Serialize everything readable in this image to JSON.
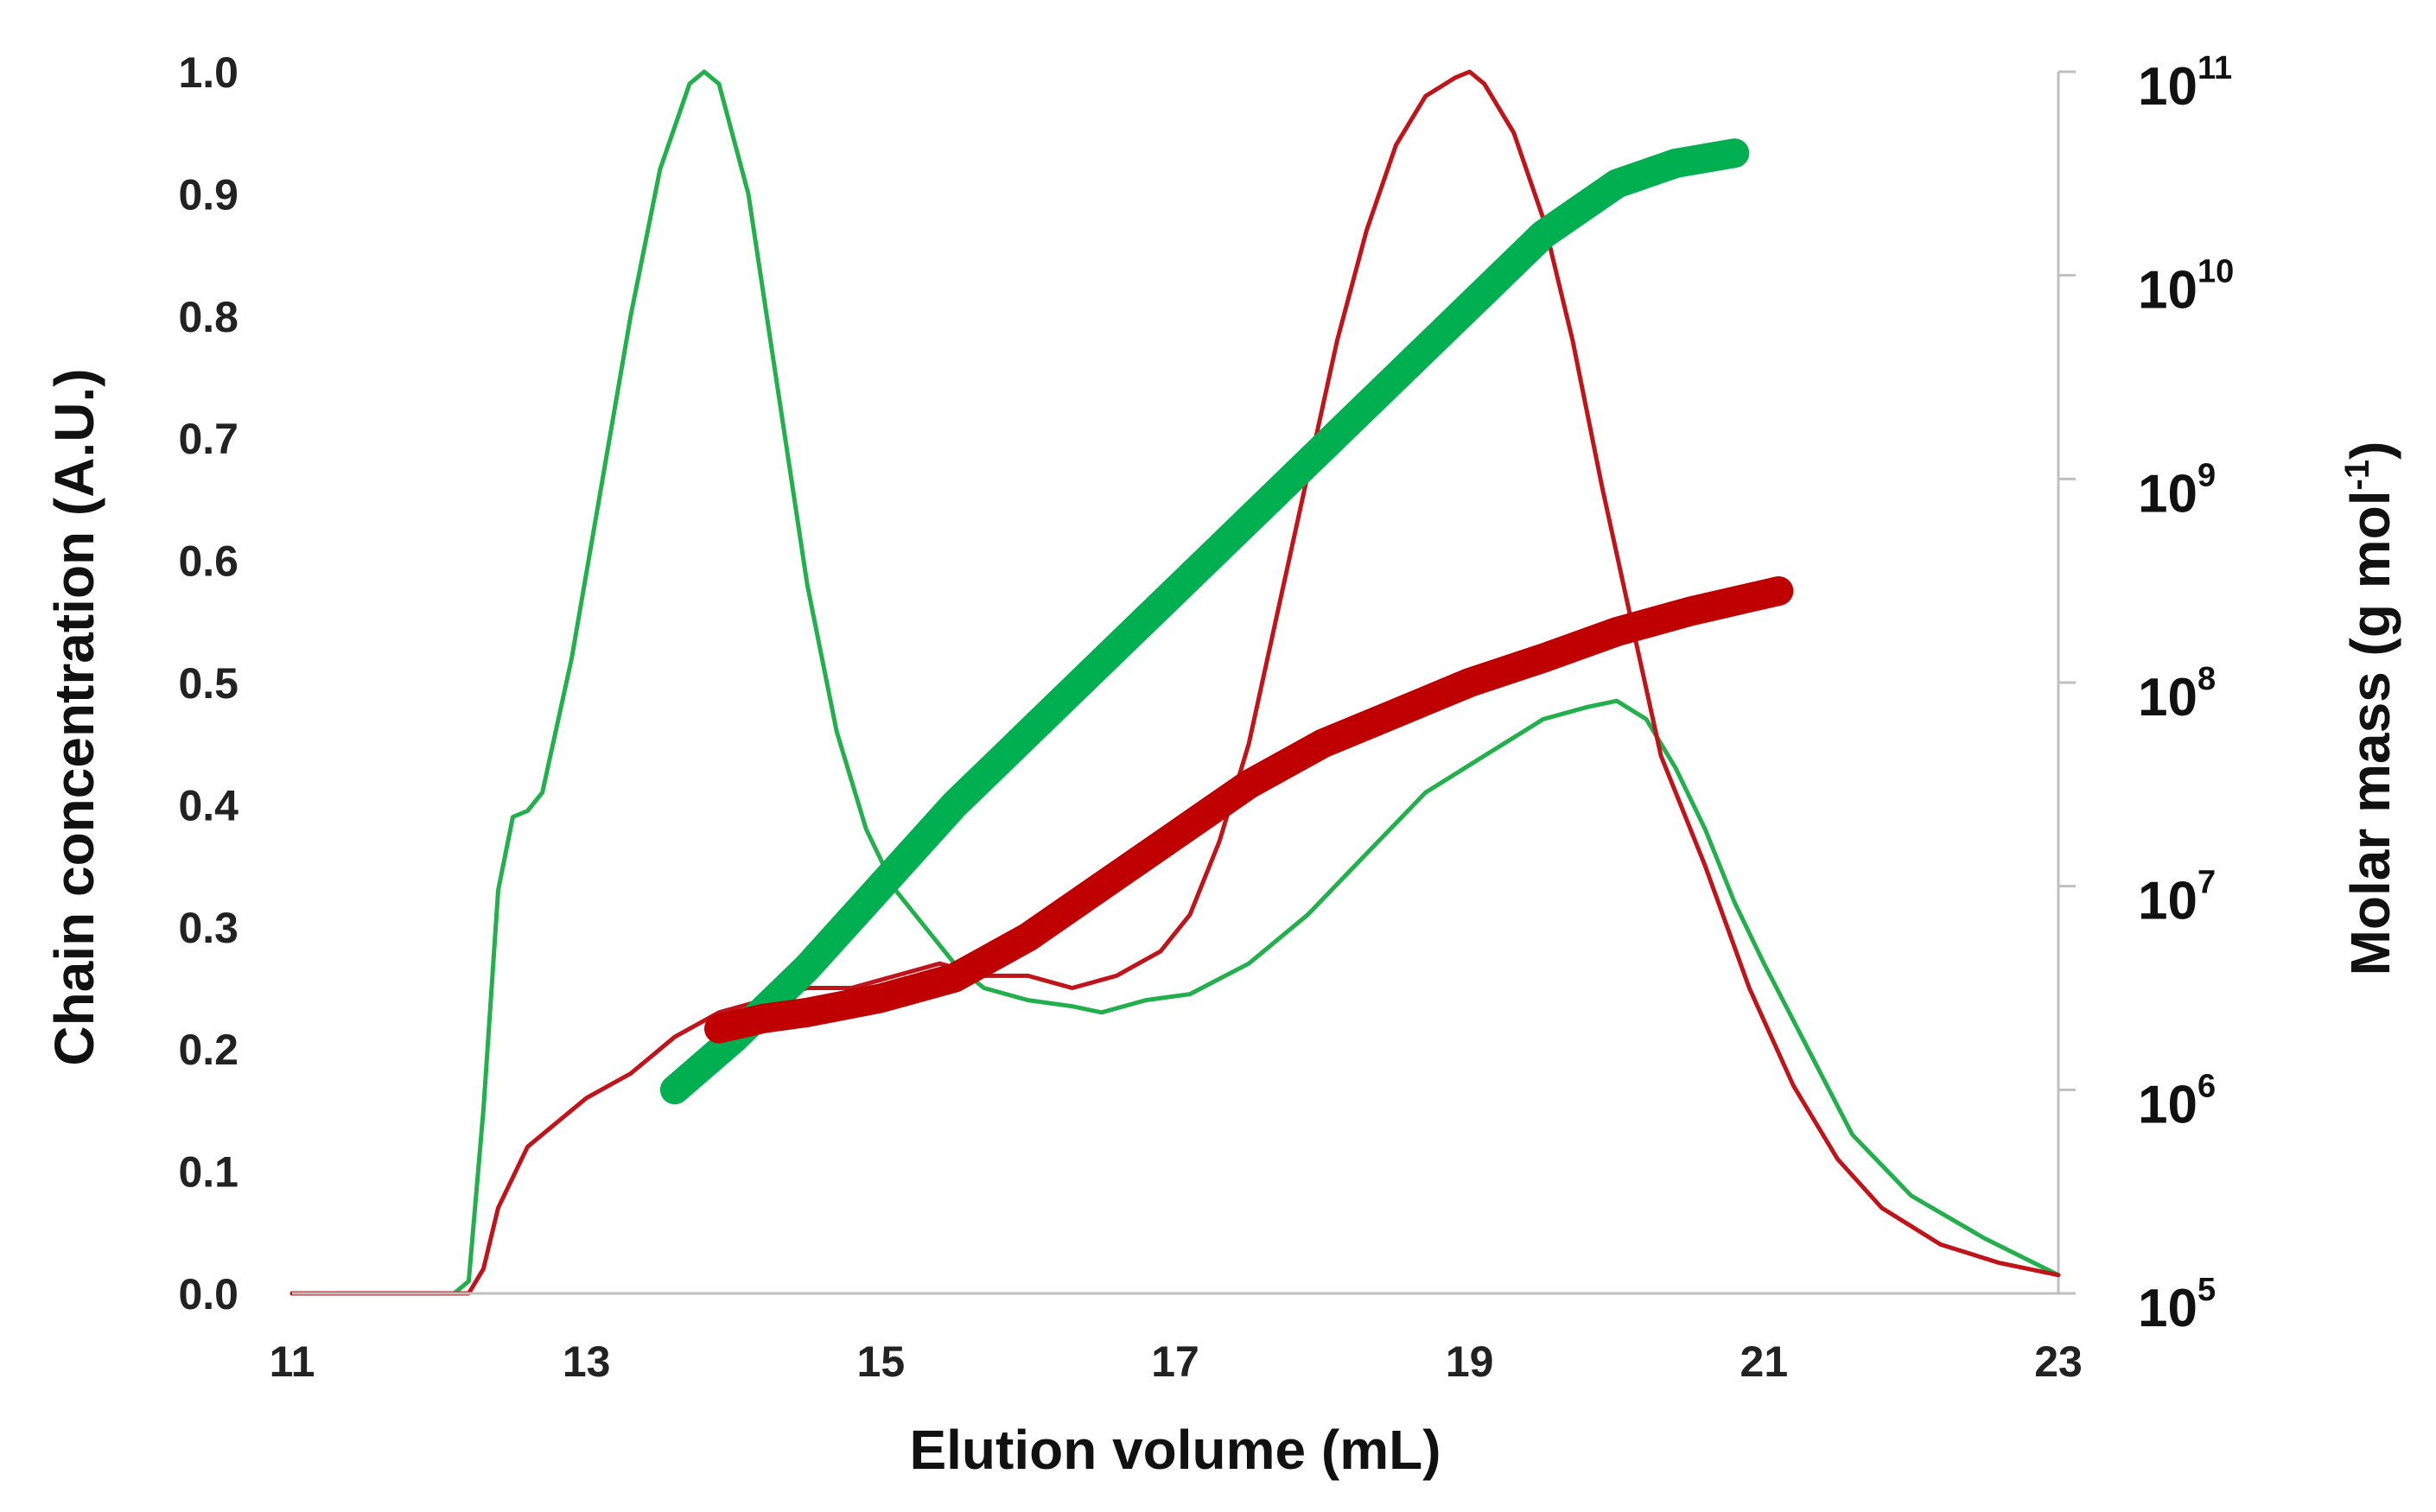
{
  "chart_data": {
    "type": "line",
    "title": "",
    "xlabel": "Elution volume (mL)",
    "ylabel": "Chain concentration (A.U.)",
    "y2label": {
      "text": "Molar mass (g mol",
      "superscript": "-1",
      "close": ")"
    },
    "xlim": [
      11,
      23
    ],
    "ylim": [
      0,
      1.0
    ],
    "y2lim_log10": [
      5,
      11
    ],
    "x_ticks": [
      "11",
      "13",
      "15",
      "17",
      "19",
      "21",
      "23"
    ],
    "x_tick_values": [
      11,
      13,
      15,
      17,
      19,
      21,
      23
    ],
    "y_ticks": [
      "0.0",
      "0.1",
      "0.2",
      "0.3",
      "0.4",
      "0.5",
      "0.6",
      "0.7",
      "0.8",
      "0.9",
      "1.0"
    ],
    "y_tick_values": [
      0,
      0.1,
      0.2,
      0.3,
      0.4,
      0.5,
      0.6,
      0.7,
      0.8,
      0.9,
      1.0
    ],
    "y2_ticks": [
      {
        "base": "10",
        "exp": "5"
      },
      {
        "base": "10",
        "exp": "6"
      },
      {
        "base": "10",
        "exp": "7"
      },
      {
        "base": "10",
        "exp": "8"
      },
      {
        "base": "10",
        "exp": "9"
      },
      {
        "base": "10",
        "exp": "10"
      },
      {
        "base": "10",
        "exp": "11"
      }
    ],
    "grid": false,
    "legend": "none",
    "series": [
      {
        "name": "green concentration",
        "axis": "left",
        "style": "thin-line",
        "color": "#21b04b",
        "x": [
          11.0,
          12.1,
          12.2,
          12.3,
          12.4,
          12.5,
          12.6,
          12.7,
          12.9,
          13.1,
          13.3,
          13.5,
          13.7,
          13.8,
          13.9,
          14.1,
          14.3,
          14.5,
          14.7,
          14.9,
          15.1,
          15.3,
          15.5,
          15.7,
          16.0,
          16.3,
          16.5,
          16.8,
          17.1,
          17.5,
          17.9,
          18.3,
          18.7,
          19.1,
          19.5,
          19.8,
          20.0,
          20.2,
          20.4,
          20.6,
          20.8,
          21.0,
          21.3,
          21.6,
          22.0,
          22.5,
          23.0
        ],
        "y": [
          0.0,
          0.0,
          0.01,
          0.15,
          0.33,
          0.39,
          0.395,
          0.41,
          0.52,
          0.66,
          0.8,
          0.92,
          0.99,
          1.0,
          0.99,
          0.9,
          0.74,
          0.58,
          0.46,
          0.38,
          0.33,
          0.3,
          0.27,
          0.25,
          0.24,
          0.235,
          0.23,
          0.24,
          0.245,
          0.27,
          0.31,
          0.36,
          0.41,
          0.44,
          0.47,
          0.48,
          0.485,
          0.47,
          0.43,
          0.38,
          0.32,
          0.27,
          0.2,
          0.13,
          0.08,
          0.045,
          0.015
        ]
      },
      {
        "name": "red concentration",
        "axis": "left",
        "style": "thin-line",
        "color": "#c0141a",
        "x": [
          11.0,
          12.2,
          12.3,
          12.4,
          12.6,
          12.8,
          13.0,
          13.3,
          13.6,
          13.9,
          14.2,
          14.5,
          14.8,
          15.1,
          15.4,
          15.7,
          16.0,
          16.3,
          16.6,
          16.9,
          17.1,
          17.3,
          17.5,
          17.7,
          17.9,
          18.1,
          18.3,
          18.5,
          18.7,
          18.9,
          19.0,
          19.1,
          19.3,
          19.5,
          19.7,
          19.9,
          20.1,
          20.3,
          20.6,
          20.9,
          21.2,
          21.5,
          21.8,
          22.2,
          22.6,
          23.0
        ],
        "y": [
          0.0,
          0.0,
          0.02,
          0.07,
          0.12,
          0.14,
          0.16,
          0.18,
          0.21,
          0.23,
          0.24,
          0.25,
          0.25,
          0.26,
          0.27,
          0.26,
          0.26,
          0.25,
          0.26,
          0.28,
          0.31,
          0.37,
          0.45,
          0.56,
          0.67,
          0.78,
          0.87,
          0.94,
          0.98,
          0.995,
          1.0,
          0.99,
          0.95,
          0.88,
          0.78,
          0.66,
          0.55,
          0.44,
          0.35,
          0.25,
          0.17,
          0.11,
          0.07,
          0.04,
          0.025,
          0.015
        ]
      },
      {
        "name": "green molar mass",
        "axis": "right",
        "style": "thick-line",
        "color": "#00b050",
        "x": [
          13.6,
          14.0,
          14.5,
          15.0,
          15.5,
          16.0,
          16.5,
          17.0,
          17.5,
          18.0,
          18.5,
          19.0,
          19.5,
          20.0,
          20.4,
          20.8
        ],
        "log10_y": [
          6.0,
          6.25,
          6.6,
          7.0,
          7.4,
          7.75,
          8.1,
          8.45,
          8.8,
          9.15,
          9.5,
          9.85,
          10.2,
          10.45,
          10.55,
          10.6
        ]
      },
      {
        "name": "red molar mass",
        "axis": "right",
        "style": "thick-line",
        "color": "#c00000",
        "x": [
          13.9,
          14.2,
          14.5,
          15.0,
          15.5,
          16.0,
          16.5,
          17.0,
          17.5,
          18.0,
          18.5,
          19.0,
          19.5,
          20.0,
          20.5,
          21.1
        ],
        "log10_y": [
          6.3,
          6.35,
          6.38,
          6.45,
          6.55,
          6.75,
          7.0,
          7.25,
          7.5,
          7.7,
          7.85,
          8.0,
          8.12,
          8.25,
          8.35,
          8.45
        ]
      }
    ]
  }
}
